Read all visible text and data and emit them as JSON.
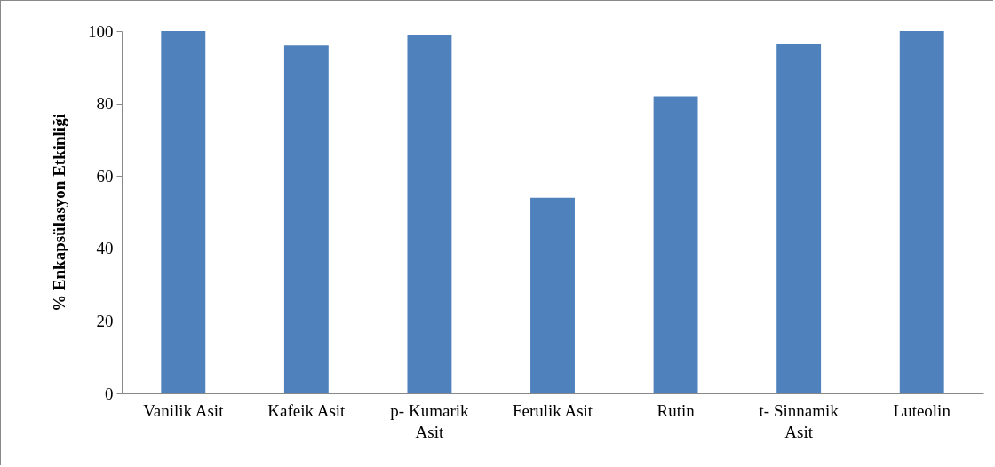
{
  "chart_data": {
    "type": "bar",
    "ylabel": "% Enkapsülasyon Etkinliği",
    "categories": [
      "Vanilik Asit",
      "Kafeik Asit",
      "p- Kumarik Asit",
      "Ferulik Asit",
      "Rutin",
      "t- Sinnamik Asit",
      "Luteolin"
    ],
    "values": [
      100,
      96,
      99,
      54,
      82,
      96.5,
      100
    ],
    "color": "#4f81bd",
    "ylim": [
      0,
      100
    ],
    "yticks": [
      0,
      20,
      40,
      60,
      80,
      100
    ],
    "grid": false
  }
}
